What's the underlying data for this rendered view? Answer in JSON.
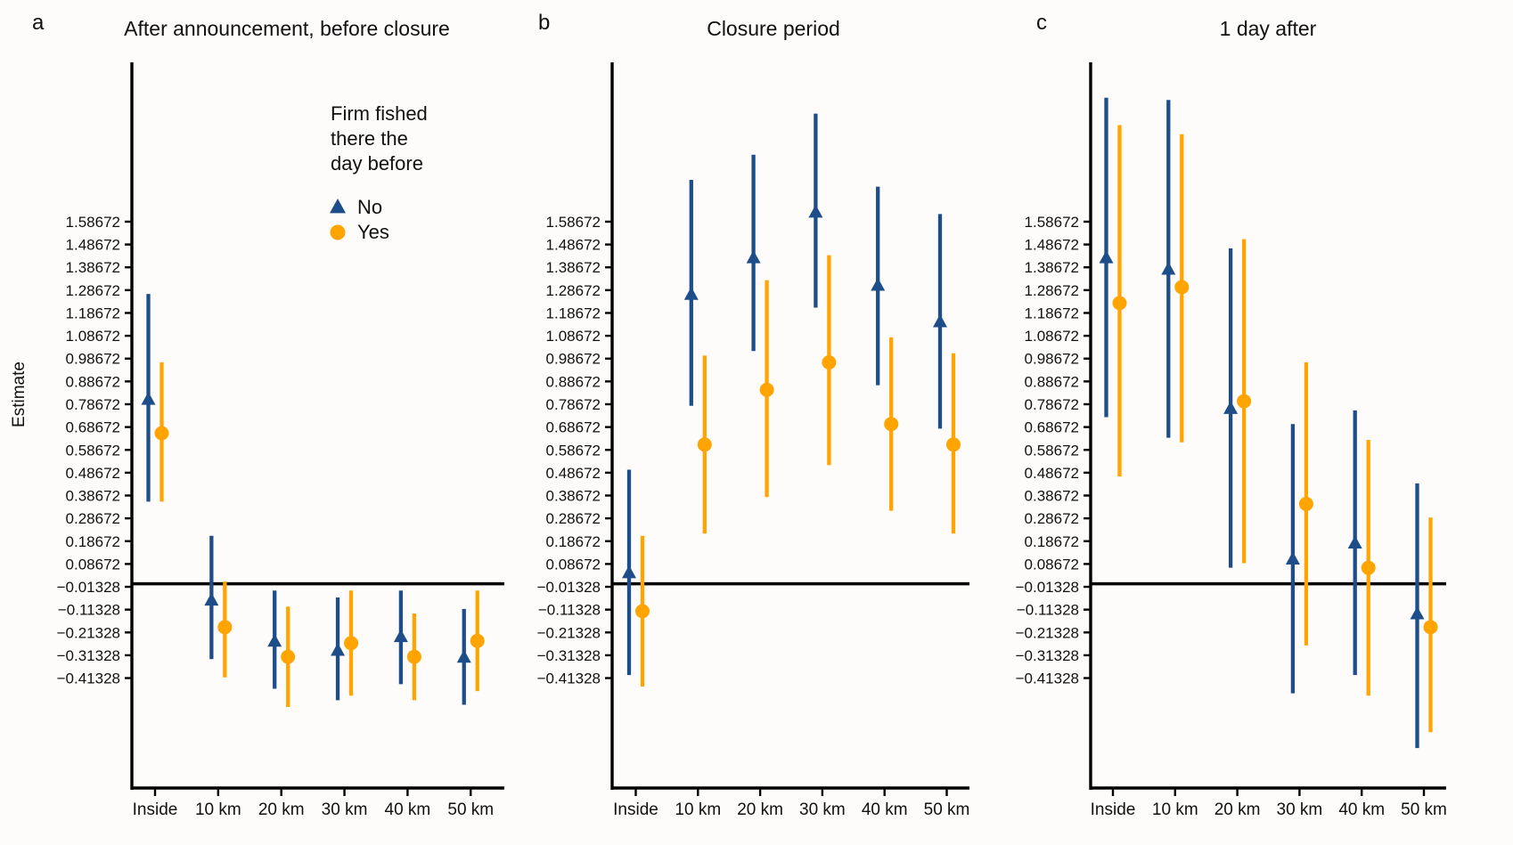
{
  "figure": {
    "background": "#FDFCFB",
    "colors": {
      "no": "#1D4E89",
      "yes": "#FFA400",
      "axis": "#000000",
      "text": "#111111"
    },
    "ylabel": "Estimate",
    "legend": {
      "title_lines": [
        "Firm fished",
        "there the",
        "day before"
      ],
      "items": [
        {
          "label": "No",
          "marker": "triangle",
          "color": "#1D4E89"
        },
        {
          "label": "Yes",
          "marker": "circle",
          "color": "#FFA400"
        }
      ]
    }
  },
  "chart_data": [
    {
      "type": "scatter",
      "subtype": "point-estimates-with-error-bars",
      "panel_label": "a",
      "title": "After announcement, before closure",
      "categories": [
        "Inside",
        "10 km",
        "20 km",
        "30 km",
        "40 km",
        "50 km"
      ],
      "ylim": [
        -0.895,
        2.285
      ],
      "yticks": [
        1.58672,
        1.48672,
        1.38672,
        1.28672,
        1.18672,
        1.08672,
        0.98672,
        0.88672,
        0.78672,
        0.68672,
        0.58672,
        0.48672,
        0.38672,
        0.28672,
        0.18672,
        0.08672,
        -0.01328,
        -0.11328,
        -0.21328,
        -0.31328,
        -0.41328
      ],
      "reference_line": 0,
      "grid": false,
      "legend_position": "upper-right-inside",
      "series": [
        {
          "name": "No",
          "marker": "triangle",
          "color": "#1D4E89",
          "values": [
            0.81,
            -0.07,
            -0.25,
            -0.29,
            -0.23,
            -0.32
          ],
          "lo": [
            0.36,
            -0.33,
            -0.46,
            -0.51,
            -0.44,
            -0.53
          ],
          "hi": [
            1.27,
            0.21,
            -0.03,
            -0.06,
            -0.03,
            -0.11
          ]
        },
        {
          "name": "Yes",
          "marker": "circle",
          "color": "#FFA400",
          "values": [
            0.66,
            -0.19,
            -0.32,
            -0.26,
            -0.32,
            -0.25
          ],
          "lo": [
            0.36,
            -0.41,
            -0.54,
            -0.49,
            -0.51,
            -0.47
          ],
          "hi": [
            0.97,
            0.01,
            -0.1,
            -0.03,
            -0.13,
            -0.03
          ]
        }
      ]
    },
    {
      "type": "scatter",
      "subtype": "point-estimates-with-error-bars",
      "panel_label": "b",
      "title": "Closure period",
      "categories": [
        "Inside",
        "10 km",
        "20 km",
        "30 km",
        "40 km",
        "50 km"
      ],
      "ylim": [
        -0.895,
        2.285
      ],
      "yticks": [
        1.58672,
        1.48672,
        1.38672,
        1.28672,
        1.18672,
        1.08672,
        0.98672,
        0.88672,
        0.78672,
        0.68672,
        0.58672,
        0.48672,
        0.38672,
        0.28672,
        0.18672,
        0.08672,
        -0.01328,
        -0.11328,
        -0.21328,
        -0.31328,
        -0.41328
      ],
      "reference_line": 0,
      "grid": false,
      "series": [
        {
          "name": "No",
          "marker": "triangle",
          "color": "#1D4E89",
          "values": [
            0.05,
            1.27,
            1.43,
            1.63,
            1.31,
            1.15
          ],
          "lo": [
            -0.4,
            0.78,
            1.02,
            1.21,
            0.87,
            0.68
          ],
          "hi": [
            0.5,
            1.77,
            1.88,
            2.06,
            1.74,
            1.62
          ]
        },
        {
          "name": "Yes",
          "marker": "circle",
          "color": "#FFA400",
          "values": [
            -0.12,
            0.61,
            0.85,
            0.97,
            0.7,
            0.61
          ],
          "lo": [
            -0.45,
            0.22,
            0.38,
            0.52,
            0.32,
            0.22
          ],
          "hi": [
            0.21,
            1.0,
            1.33,
            1.44,
            1.08,
            1.01
          ]
        }
      ]
    },
    {
      "type": "scatter",
      "subtype": "point-estimates-with-error-bars",
      "panel_label": "c",
      "title": "1 day after",
      "categories": [
        "Inside",
        "10 km",
        "20 km",
        "30 km",
        "40 km",
        "50 km"
      ],
      "ylim": [
        -0.895,
        2.285
      ],
      "yticks": [
        1.58672,
        1.48672,
        1.38672,
        1.28672,
        1.18672,
        1.08672,
        0.98672,
        0.88672,
        0.78672,
        0.68672,
        0.58672,
        0.48672,
        0.38672,
        0.28672,
        0.18672,
        0.08672,
        -0.01328,
        -0.11328,
        -0.21328,
        -0.31328,
        -0.41328
      ],
      "reference_line": 0,
      "grid": false,
      "series": [
        {
          "name": "No",
          "marker": "triangle",
          "color": "#1D4E89",
          "values": [
            1.43,
            1.38,
            0.77,
            0.11,
            0.18,
            -0.13
          ],
          "lo": [
            0.73,
            0.64,
            0.07,
            -0.48,
            -0.4,
            -0.72
          ],
          "hi": [
            2.13,
            2.12,
            1.47,
            0.7,
            0.76,
            0.44
          ]
        },
        {
          "name": "Yes",
          "marker": "circle",
          "color": "#FFA400",
          "values": [
            1.23,
            1.3,
            0.8,
            0.35,
            0.07,
            -0.19
          ],
          "lo": [
            0.47,
            0.62,
            0.09,
            -0.27,
            -0.49,
            -0.65
          ],
          "hi": [
            2.01,
            1.97,
            1.51,
            0.97,
            0.63,
            0.29
          ]
        }
      ]
    }
  ]
}
